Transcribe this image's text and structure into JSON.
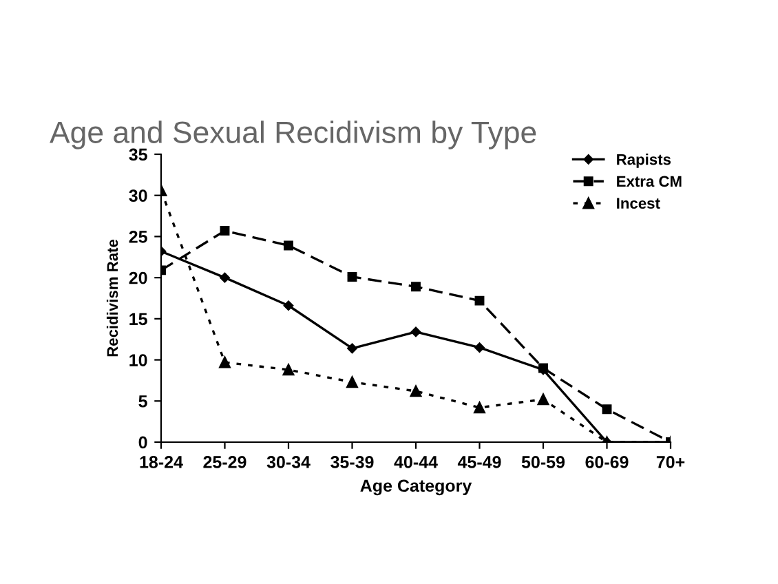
{
  "chart_data": {
    "type": "line",
    "title": "Age and Sexual Recidivism by Type",
    "xlabel": "Age Category",
    "ylabel": "Recidivism Rate",
    "categories": [
      "18-24",
      "25-29",
      "30-34",
      "35-39",
      "40-44",
      "45-49",
      "50-59",
      "60-69",
      "70+"
    ],
    "ylim": [
      0,
      35
    ],
    "yticks": [
      0,
      5,
      10,
      15,
      20,
      25,
      30,
      35
    ],
    "grid": false,
    "legend": "top right",
    "series": [
      {
        "name": "Rapists",
        "color": "#000000",
        "marker": "diamond",
        "line_style": "solid",
        "values": [
          23.2,
          20,
          16.6,
          11.4,
          13.4,
          11.5,
          8.8,
          0,
          0
        ]
      },
      {
        "name": "Extra CM",
        "color": "#000000",
        "marker": "square",
        "line_style": "dashed",
        "values": [
          20.9,
          25.7,
          23.9,
          20.1,
          18.9,
          17.2,
          9,
          4,
          0
        ]
      },
      {
        "name": "Incest",
        "color": "#000000",
        "marker": "triangle",
        "line_style": "dotted",
        "values": [
          30.6,
          9.7,
          8.8,
          7.3,
          6.2,
          4.2,
          5.2,
          0,
          0
        ]
      }
    ]
  }
}
